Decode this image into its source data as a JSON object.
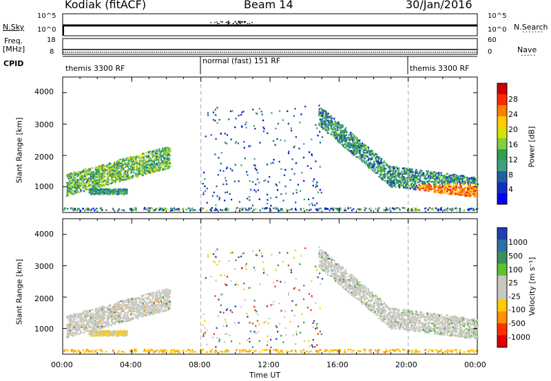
{
  "header": {
    "radar": "Kodiak (fitACF)",
    "beam": "Beam 14",
    "date": "30/Jan/2016"
  },
  "top_panels": {
    "nsky_label": "N.Sky",
    "nsearch_label": "N.Search",
    "left_ticks_top": [
      "10^5",
      "10^0"
    ],
    "right_ticks_top": [
      "10^5",
      "10^0"
    ],
    "freq_label_1": "Freq.",
    "freq_label_2": "[MHz]",
    "freq_ticks": [
      "18",
      "8"
    ],
    "nave_label": "Nave",
    "nave_ticks": [
      "60",
      "0"
    ],
    "cpid_label": "CPID",
    "cpid_segments": [
      {
        "label": "themis 3300 RF",
        "start_h": 0,
        "end_h": 8
      },
      {
        "label": "normal (fast) 151 RF",
        "start_h": 8,
        "end_h": 20
      },
      {
        "label": "themis 3300 RF",
        "start_h": 20,
        "end_h": 24
      }
    ]
  },
  "panels": {
    "power": {
      "ylabel": "Slant Range [km]",
      "cbar_label": "Power [dB]",
      "cbar_ticks": [
        "28",
        "24",
        "20",
        "16",
        "12",
        "8",
        "4"
      ],
      "cbar_colors": [
        "#cc0000",
        "#ff2a00",
        "#ff7f00",
        "#ffcc00",
        "#d8e000",
        "#80d040",
        "#30a050",
        "#40a080",
        "#2060a0",
        "#1030c0",
        "#0000ff"
      ]
    },
    "velocity": {
      "ylabel": "Slant Range [km]",
      "cbar_label": "Velocity [m s⁻¹]",
      "cbar_ticks": [
        "1000",
        "500",
        "100",
        "25",
        "-25",
        "-100",
        "-500",
        "-1000"
      ],
      "cbar_colors": [
        "#2040b0",
        "#2e6fa8",
        "#3a8f60",
        "#60c030",
        "#c8c8c0",
        "#c8c8c0",
        "#ffcc00",
        "#ff9000",
        "#ff3000",
        "#e00000"
      ]
    }
  },
  "xaxis": {
    "label": "Time UT",
    "ticks": [
      "00:00",
      "04:00",
      "08:00",
      "12:00",
      "16:00",
      "20:00",
      "00:00"
    ]
  },
  "chart_data": [
    {
      "type": "heatmap",
      "title": "Power",
      "xlabel": "Time UT",
      "ylabel": "Slant Range [km]",
      "xlim": [
        0,
        24
      ],
      "ylim": [
        180,
        4500
      ],
      "yticks": [
        1000,
        2000,
        3000,
        4000
      ],
      "colorbar": {
        "label": "Power [dB]",
        "range": [
          0,
          32
        ],
        "ticks": [
          4,
          8,
          12,
          16,
          20,
          24,
          28
        ]
      },
      "scatter_regions": [
        {
          "time_h": [
            0.2,
            6.2
          ],
          "range_km": [
            900,
            2200
          ],
          "power_db": 12
        },
        {
          "time_h": [
            1.5,
            3.7
          ],
          "range_km": [
            750,
            950
          ],
          "power_db": 10
        },
        {
          "time_h": [
            14.8,
            24
          ],
          "range_km": [
            850,
            3400
          ],
          "power_db": 14
        },
        {
          "time_h": [
            20.5,
            23.8
          ],
          "range_km": [
            850,
            1050
          ],
          "power_db": 26
        }
      ]
    },
    {
      "type": "heatmap",
      "title": "Velocity",
      "xlabel": "Time UT",
      "ylabel": "Slant Range [km]",
      "xlim": [
        0,
        24
      ],
      "ylim": [
        180,
        4500
      ],
      "yticks": [
        1000,
        2000,
        3000,
        4000
      ],
      "colorbar": {
        "label": "Velocity [m s⁻¹]",
        "ticks": [
          -1000,
          -500,
          -100,
          -25,
          25,
          100,
          500,
          1000
        ]
      },
      "scatter_regions": [
        {
          "time_h": [
            0.2,
            6.2
          ],
          "range_km": [
            900,
            2200
          ],
          "velocity": 0
        },
        {
          "time_h": [
            2.0,
            3.7
          ],
          "range_km": [
            750,
            950
          ],
          "velocity": -300
        },
        {
          "time_h": [
            14.8,
            24
          ],
          "range_km": [
            850,
            3400
          ],
          "velocity": 0
        }
      ]
    }
  ]
}
